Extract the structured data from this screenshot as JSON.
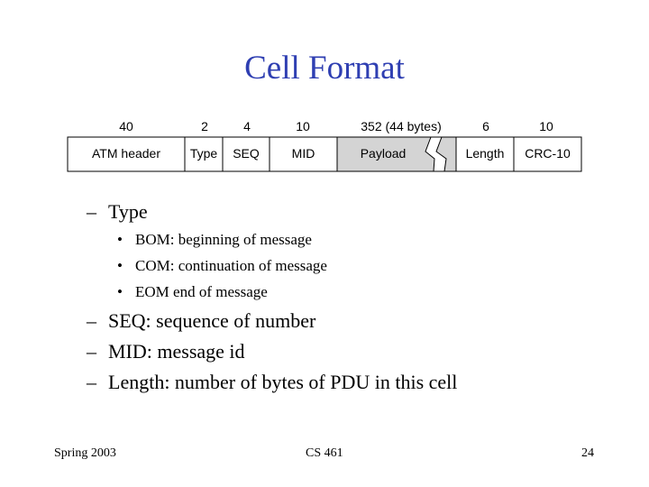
{
  "slide": {
    "title": "Cell Format",
    "cell_fields": [
      {
        "bits": "40",
        "name": "ATM header"
      },
      {
        "bits": "2",
        "name": "Type"
      },
      {
        "bits": "4",
        "name": "SEQ"
      },
      {
        "bits": "10",
        "name": "MID"
      },
      {
        "bits": "352 (44 bytes)",
        "name": "Payload"
      },
      {
        "bits": "6",
        "name": "Length"
      },
      {
        "bits": "10",
        "name": "CRC-10"
      }
    ],
    "payload_fill_color": "#d4d4d4",
    "bullets": [
      {
        "marker": "–",
        "text": "Type"
      },
      {
        "marker": "•",
        "text": "BOM: beginning of message"
      },
      {
        "marker": "•",
        "text": "COM: continuation of message"
      },
      {
        "marker": "•",
        "text": "EOM end of message"
      },
      {
        "marker": "–",
        "text": "SEQ: sequence of number"
      },
      {
        "marker": "–",
        "text": "MID: message id"
      },
      {
        "marker": "–",
        "text": "Length: number of bytes of PDU in this cell"
      }
    ]
  },
  "footer": {
    "left": "Spring 2003",
    "center": "CS 461",
    "right": "24"
  }
}
